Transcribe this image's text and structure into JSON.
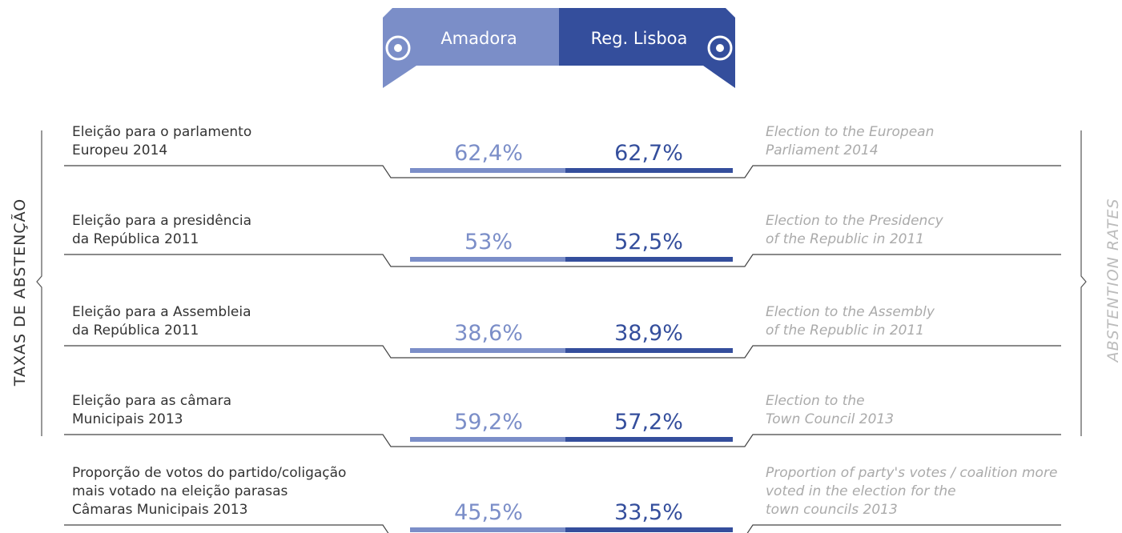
{
  "header": {
    "tabs": [
      "Amadora",
      "Reg. Lisboa"
    ]
  },
  "side_labels": {
    "left": "TAXAS DE ABSTENÇÃO",
    "right": "ABSTENTION RATES"
  },
  "rows": [
    {
      "pt": [
        "Eleição para o parlamento",
        "Europeu 2014"
      ],
      "amadora": "62,4%",
      "lisboa": "62,7%",
      "en": [
        "Election to the European",
        "Parliament 2014"
      ]
    },
    {
      "pt": [
        "Eleição para a presidência",
        "da República 2011"
      ],
      "amadora": "53%",
      "lisboa": "52,5%",
      "en": [
        "Election to the Presidency",
        "of the Republic in 2011"
      ]
    },
    {
      "pt": [
        "Eleição para a Assembleia",
        "da República 2011"
      ],
      "amadora": "38,6%",
      "lisboa": "38,9%",
      "en": [
        "Election to the Assembly",
        "of the Republic in 2011"
      ]
    },
    {
      "pt": [
        "Eleição para as câmara",
        "Municipais 2013"
      ],
      "amadora": "59,2%",
      "lisboa": "57,2%",
      "en": [
        "Election to the",
        "Town Council 2013"
      ]
    },
    {
      "pt": [
        "Proporção de votos do partido/coligação",
        "mais votado na eleição parasas",
        "Câmaras Municipais 2013"
      ],
      "amadora": "45,5%",
      "lisboa": "33,5%",
      "en": [
        "Proportion of party's votes / coalition more",
        "voted in the election for the",
        "town councils 2013"
      ]
    }
  ]
}
